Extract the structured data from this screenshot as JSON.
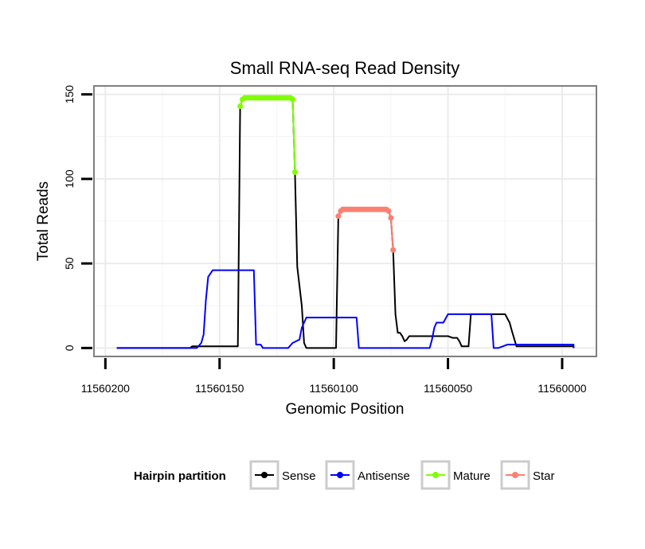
{
  "chart_data": {
    "type": "line",
    "title": "Small RNA-seq Read Density",
    "xlabel": "Genomic Position",
    "ylabel": "Total Reads",
    "xlim": [
      11560205,
      11559985
    ],
    "x_reversed": true,
    "ylim": [
      -5,
      155
    ],
    "x_ticks": [
      11560200,
      11560150,
      11560100,
      11560050,
      11560000
    ],
    "y_ticks": [
      0,
      50,
      100,
      150
    ],
    "grid": true,
    "legend": {
      "title": "Hairpin partition",
      "placement": "bottom",
      "entries": [
        {
          "name": "Sense",
          "color": "#000000"
        },
        {
          "name": "Antisense",
          "color": "#0000FF"
        },
        {
          "name": "Mature",
          "color": "#7FFF00"
        },
        {
          "name": "Star",
          "color": "#FA8072"
        }
      ]
    },
    "series": [
      {
        "name": "Sense",
        "color": "#000000",
        "points": [
          [
            11560195,
            0
          ],
          [
            11560163,
            0
          ],
          [
            11560162,
            1
          ],
          [
            11560153,
            1
          ],
          [
            11560142,
            1
          ],
          [
            11560141,
            143
          ],
          [
            11560140,
            147
          ],
          [
            11560118,
            147
          ],
          [
            11560117,
            104
          ],
          [
            11560116,
            48
          ],
          [
            11560114,
            25
          ],
          [
            11560113,
            3
          ],
          [
            11560112,
            0
          ],
          [
            11560099,
            0
          ],
          [
            11560098,
            78
          ],
          [
            11560097,
            81
          ],
          [
            11560076,
            81
          ],
          [
            11560075,
            77
          ],
          [
            11560074,
            58
          ],
          [
            11560073,
            20
          ],
          [
            11560072,
            9
          ],
          [
            11560071,
            9
          ],
          [
            11560070,
            7
          ],
          [
            11560069,
            4
          ],
          [
            11560068,
            5
          ],
          [
            11560067,
            7
          ],
          [
            11560050,
            7
          ],
          [
            11560048,
            6
          ],
          [
            11560046,
            6
          ],
          [
            11560045,
            4
          ],
          [
            11560044,
            1
          ],
          [
            11560041,
            1
          ],
          [
            11560040,
            20
          ],
          [
            11560025,
            20
          ],
          [
            11560023,
            15
          ],
          [
            11560022,
            10
          ],
          [
            11560020,
            1
          ],
          [
            11559995,
            1
          ],
          [
            11559995,
            0
          ]
        ]
      },
      {
        "name": "Antisense",
        "color": "#0000FF",
        "points": [
          [
            11560195,
            0
          ],
          [
            11560160,
            0
          ],
          [
            11560158,
            3
          ],
          [
            11560157,
            8
          ],
          [
            11560156,
            28
          ],
          [
            11560155,
            42
          ],
          [
            11560153,
            46
          ],
          [
            11560135,
            46
          ],
          [
            11560134,
            2
          ],
          [
            11560132,
            2
          ],
          [
            11560131,
            0
          ],
          [
            11560120,
            0
          ],
          [
            11560118,
            3
          ],
          [
            11560115,
            5
          ],
          [
            11560114,
            12
          ],
          [
            11560112,
            18
          ],
          [
            11560110,
            18
          ],
          [
            11560090,
            18
          ],
          [
            11560089,
            0
          ],
          [
            11560058,
            0
          ],
          [
            11560057,
            5
          ],
          [
            11560056,
            12
          ],
          [
            11560055,
            15
          ],
          [
            11560052,
            15
          ],
          [
            11560050,
            20
          ],
          [
            11560031,
            20
          ],
          [
            11560030,
            0
          ],
          [
            11560028,
            0
          ],
          [
            11560026,
            1
          ],
          [
            11560024,
            2
          ],
          [
            11559995,
            2
          ],
          [
            11559995,
            0
          ]
        ]
      },
      {
        "name": "Mature",
        "color": "#7FFF00",
        "points": [
          [
            11560141,
            143
          ],
          [
            11560140,
            147
          ],
          [
            11560139,
            148
          ],
          [
            11560138,
            148
          ],
          [
            11560137,
            148
          ],
          [
            11560136,
            148
          ],
          [
            11560135,
            148
          ],
          [
            11560134,
            148
          ],
          [
            11560133,
            148
          ],
          [
            11560132,
            148
          ],
          [
            11560131,
            148
          ],
          [
            11560130,
            148
          ],
          [
            11560129,
            148
          ],
          [
            11560128,
            148
          ],
          [
            11560127,
            148
          ],
          [
            11560126,
            148
          ],
          [
            11560125,
            148
          ],
          [
            11560124,
            148
          ],
          [
            11560123,
            148
          ],
          [
            11560122,
            148
          ],
          [
            11560121,
            148
          ],
          [
            11560120,
            148
          ],
          [
            11560119,
            148
          ],
          [
            11560118,
            147
          ],
          [
            11560117,
            104
          ]
        ]
      },
      {
        "name": "Star",
        "color": "#FA8072",
        "points": [
          [
            11560098,
            78
          ],
          [
            11560097,
            81
          ],
          [
            11560096,
            82
          ],
          [
            11560095,
            82
          ],
          [
            11560094,
            82
          ],
          [
            11560093,
            82
          ],
          [
            11560092,
            82
          ],
          [
            11560091,
            82
          ],
          [
            11560090,
            82
          ],
          [
            11560089,
            82
          ],
          [
            11560088,
            82
          ],
          [
            11560087,
            82
          ],
          [
            11560086,
            82
          ],
          [
            11560085,
            82
          ],
          [
            11560084,
            82
          ],
          [
            11560083,
            82
          ],
          [
            11560082,
            82
          ],
          [
            11560081,
            82
          ],
          [
            11560080,
            82
          ],
          [
            11560079,
            82
          ],
          [
            11560078,
            82
          ],
          [
            11560077,
            82
          ],
          [
            11560076,
            81
          ],
          [
            11560075,
            77
          ],
          [
            11560074,
            58
          ]
        ]
      }
    ]
  }
}
